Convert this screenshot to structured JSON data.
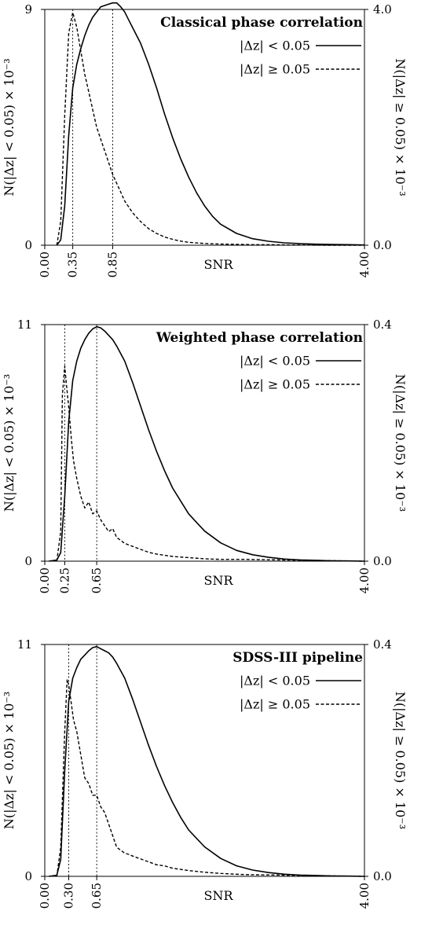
{
  "chart_data": [
    {
      "type": "line",
      "title": "Classical phase correlation",
      "xlabel": "SNR",
      "ylabel_left": "N(|Δz| < 0.05) × 10⁻³",
      "ylabel_right": "N(|Δz| ≥ 0.05) × 10⁻³",
      "xlim": [
        0.0,
        4.0
      ],
      "ylim_left": [
        0,
        9
      ],
      "ylim_right": [
        0.0,
        4.0
      ],
      "x_ticks": [
        "0.00",
        "0.35",
        "0.85",
        "SNR",
        "4.00"
      ],
      "y_left_ticks": [
        "0",
        "9"
      ],
      "y_right_ticks": [
        "0.0",
        "4.0"
      ],
      "vlines": [
        0.35,
        0.85
      ],
      "series": [
        {
          "name": "|Δz| < 0.05",
          "axis": "left",
          "style": "solid",
          "x": [
            0.15,
            0.2,
            0.25,
            0.3,
            0.35,
            0.4,
            0.45,
            0.5,
            0.55,
            0.6,
            0.65,
            0.7,
            0.75,
            0.8,
            0.85,
            0.9,
            0.95,
            1.0,
            1.05,
            1.1,
            1.2,
            1.3,
            1.4,
            1.5,
            1.6,
            1.7,
            1.8,
            1.9,
            2.0,
            2.1,
            2.2,
            2.4,
            2.6,
            2.8,
            3.0,
            3.2,
            3.4,
            3.6,
            3.8,
            4.0
          ],
          "values": [
            0.0,
            0.2,
            1.5,
            4.2,
            6.0,
            6.9,
            7.5,
            8.0,
            8.4,
            8.7,
            8.9,
            9.1,
            9.15,
            9.2,
            9.25,
            9.25,
            9.1,
            8.9,
            8.6,
            8.3,
            7.7,
            6.9,
            6.0,
            5.0,
            4.1,
            3.3,
            2.6,
            2.0,
            1.5,
            1.1,
            0.8,
            0.45,
            0.25,
            0.15,
            0.09,
            0.06,
            0.04,
            0.03,
            0.02,
            0.01
          ]
        },
        {
          "name": "|Δz| ≥ 0.05",
          "axis": "right",
          "style": "dashed",
          "x": [
            0.15,
            0.2,
            0.25,
            0.3,
            0.35,
            0.4,
            0.45,
            0.5,
            0.55,
            0.6,
            0.65,
            0.7,
            0.75,
            0.8,
            0.85,
            0.9,
            0.95,
            1.0,
            1.1,
            1.2,
            1.3,
            1.4,
            1.5,
            1.6,
            1.7,
            1.8,
            2.0,
            2.2,
            2.4,
            2.6,
            2.8,
            3.0,
            3.5,
            4.0
          ],
          "values": [
            0.0,
            0.4,
            2.2,
            3.6,
            3.95,
            3.7,
            3.3,
            2.9,
            2.6,
            2.3,
            2.0,
            1.8,
            1.6,
            1.4,
            1.2,
            1.05,
            0.9,
            0.75,
            0.55,
            0.4,
            0.28,
            0.2,
            0.14,
            0.1,
            0.07,
            0.05,
            0.03,
            0.02,
            0.015,
            0.01,
            0.01,
            0.005,
            0.0,
            0.0
          ]
        }
      ]
    },
    {
      "type": "line",
      "title": "Weighted phase correlation",
      "xlabel": "SNR",
      "ylabel_left": "N(|Δz| < 0.05) × 10⁻³",
      "ylabel_right": "N(|Δz| ≥ 0.05) × 10⁻³",
      "xlim": [
        0.0,
        4.0
      ],
      "ylim_left": [
        0,
        11
      ],
      "ylim_right": [
        0.0,
        0.4
      ],
      "x_ticks": [
        "0.00",
        "0.25",
        "0.65",
        "SNR",
        "4.00"
      ],
      "y_left_ticks": [
        "0",
        "11"
      ],
      "y_right_ticks": [
        "0.0",
        "0.4"
      ],
      "vlines": [
        0.25,
        0.65
      ],
      "series": [
        {
          "name": "|Δz| < 0.05",
          "axis": "left",
          "style": "solid",
          "x": [
            0.05,
            0.15,
            0.2,
            0.25,
            0.3,
            0.35,
            0.4,
            0.45,
            0.5,
            0.55,
            0.6,
            0.65,
            0.7,
            0.75,
            0.8,
            0.85,
            0.9,
            1.0,
            1.1,
            1.2,
            1.3,
            1.4,
            1.5,
            1.6,
            1.7,
            1.8,
            2.0,
            2.2,
            2.4,
            2.6,
            2.8,
            3.0,
            3.2,
            3.4,
            3.6,
            3.8,
            4.0
          ],
          "values": [
            0.0,
            0.05,
            0.4,
            3.0,
            6.5,
            8.4,
            9.3,
            9.9,
            10.3,
            10.6,
            10.8,
            10.9,
            10.85,
            10.7,
            10.5,
            10.3,
            10.0,
            9.3,
            8.3,
            7.2,
            6.1,
            5.1,
            4.2,
            3.4,
            2.8,
            2.2,
            1.4,
            0.85,
            0.5,
            0.3,
            0.18,
            0.1,
            0.06,
            0.04,
            0.02,
            0.01,
            0.0
          ]
        },
        {
          "name": "|Δz| ≥ 0.05",
          "axis": "right",
          "style": "dashed",
          "x": [
            0.15,
            0.2,
            0.22,
            0.25,
            0.27,
            0.3,
            0.33,
            0.36,
            0.4,
            0.45,
            0.5,
            0.55,
            0.6,
            0.65,
            0.7,
            0.75,
            0.8,
            0.85,
            0.9,
            1.0,
            1.1,
            1.2,
            1.3,
            1.4,
            1.5,
            1.6,
            1.8,
            2.0,
            2.2,
            2.5,
            3.0,
            3.5,
            4.0
          ],
          "values": [
            0.0,
            0.05,
            0.28,
            0.33,
            0.3,
            0.26,
            0.21,
            0.17,
            0.14,
            0.11,
            0.09,
            0.1,
            0.08,
            0.085,
            0.07,
            0.06,
            0.05,
            0.055,
            0.04,
            0.03,
            0.025,
            0.02,
            0.015,
            0.012,
            0.01,
            0.008,
            0.006,
            0.004,
            0.003,
            0.003,
            0.002,
            0.001,
            0.0
          ]
        }
      ]
    },
    {
      "type": "line",
      "title": "SDSS-III pipeline",
      "xlabel": "SNR",
      "ylabel_left": "N(|Δz| < 0.05) × 10⁻³",
      "ylabel_right": "N(|Δz| ≥ 0.05) × 10⁻³",
      "xlim": [
        0.0,
        4.0
      ],
      "ylim_left": [
        0,
        11
      ],
      "ylim_right": [
        0.0,
        0.4
      ],
      "x_ticks": [
        "0.00",
        "0.30",
        "0.65",
        "SNR",
        "4.00"
      ],
      "y_left_ticks": [
        "0",
        "11"
      ],
      "y_right_ticks": [
        "0.0",
        "0.4"
      ],
      "vlines": [
        0.3,
        0.65
      ],
      "series": [
        {
          "name": "|Δz| < 0.05",
          "axis": "left",
          "style": "solid",
          "x": [
            0.05,
            0.15,
            0.2,
            0.25,
            0.3,
            0.35,
            0.4,
            0.45,
            0.5,
            0.55,
            0.6,
            0.65,
            0.7,
            0.75,
            0.8,
            0.85,
            0.9,
            1.0,
            1.1,
            1.2,
            1.3,
            1.4,
            1.5,
            1.6,
            1.7,
            1.8,
            2.0,
            2.2,
            2.4,
            2.6,
            2.8,
            3.0,
            3.2,
            3.4,
            3.6,
            3.8,
            4.0
          ],
          "values": [
            0.0,
            0.05,
            0.8,
            5.0,
            8.3,
            9.4,
            9.9,
            10.3,
            10.5,
            10.7,
            10.85,
            10.9,
            10.8,
            10.7,
            10.6,
            10.4,
            10.1,
            9.4,
            8.4,
            7.3,
            6.2,
            5.2,
            4.3,
            3.5,
            2.8,
            2.2,
            1.4,
            0.85,
            0.5,
            0.3,
            0.18,
            0.1,
            0.06,
            0.04,
            0.02,
            0.01,
            0.0
          ]
        },
        {
          "name": "|Δz| ≥ 0.05",
          "axis": "right",
          "style": "dashed",
          "x": [
            0.15,
            0.2,
            0.25,
            0.28,
            0.3,
            0.33,
            0.36,
            0.4,
            0.45,
            0.5,
            0.55,
            0.6,
            0.65,
            0.7,
            0.75,
            0.8,
            0.85,
            0.9,
            0.95,
            1.0,
            1.05,
            1.1,
            1.2,
            1.3,
            1.4,
            1.5,
            1.6,
            1.8,
            2.0,
            2.2,
            2.5,
            3.0,
            3.5,
            4.0
          ],
          "values": [
            0.0,
            0.05,
            0.25,
            0.34,
            0.33,
            0.3,
            0.27,
            0.25,
            0.21,
            0.17,
            0.16,
            0.14,
            0.14,
            0.12,
            0.11,
            0.09,
            0.07,
            0.05,
            0.045,
            0.04,
            0.038,
            0.035,
            0.03,
            0.025,
            0.02,
            0.018,
            0.014,
            0.01,
            0.007,
            0.005,
            0.003,
            0.002,
            0.001,
            0.0
          ]
        }
      ]
    }
  ]
}
